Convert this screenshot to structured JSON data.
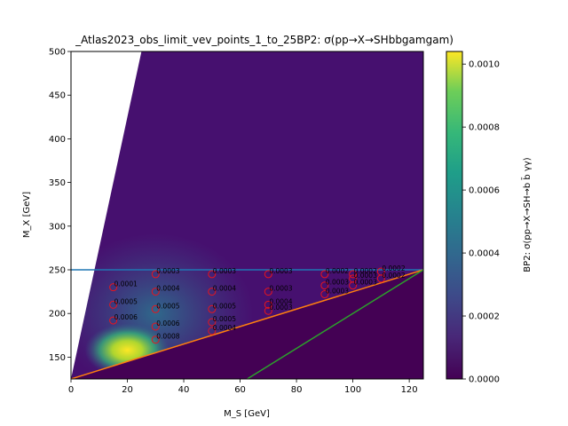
{
  "chart_data": {
    "type": "heatmap",
    "title": "_Atlas2023_obs_limit_vev_points_1_to_25BP2: σ(pp→X→SHbbgamgam)",
    "xlabel": "M_S [GeV]",
    "ylabel": "M_X [GeV]",
    "xlim": [
      0,
      125
    ],
    "ylim": [
      125,
      500
    ],
    "xticks": [
      "0",
      "20",
      "40",
      "60",
      "80",
      "100",
      "120"
    ],
    "yticks": [
      "150",
      "200",
      "250",
      "300",
      "350",
      "400",
      "450",
      "500"
    ],
    "colorbar": {
      "label": "BP2: σ(pp→X→SH→b b̄ γγ)",
      "min": 0.0,
      "max": 0.00104,
      "ticks": [
        "0.0000",
        "0.0002",
        "0.0004",
        "0.0006",
        "0.0008",
        "0.0010"
      ],
      "colormap": "viridis"
    },
    "lines": [
      {
        "color": "#1f77b4",
        "points": [
          [
            0,
            250
          ],
          [
            125,
            250
          ]
        ]
      },
      {
        "color": "#ff7f0e",
        "points": [
          [
            0,
            125
          ],
          [
            125,
            250
          ]
        ]
      },
      {
        "color": "#2ca02c",
        "points": [
          [
            62.5,
            125
          ],
          [
            125,
            250
          ]
        ]
      }
    ],
    "points": [
      {
        "x": 15,
        "y": 230,
        "label": "0.0001"
      },
      {
        "x": 15,
        "y": 210,
        "label": "0.0005"
      },
      {
        "x": 15,
        "y": 192,
        "label": "0.0006"
      },
      {
        "x": 30,
        "y": 245,
        "label": "0.0003"
      },
      {
        "x": 30,
        "y": 225,
        "label": "0.0004"
      },
      {
        "x": 30,
        "y": 205,
        "label": "0.0005"
      },
      {
        "x": 30,
        "y": 185,
        "label": "0.0006"
      },
      {
        "x": 30,
        "y": 170,
        "label": "0.0008"
      },
      {
        "x": 50,
        "y": 245,
        "label": "0.0003"
      },
      {
        "x": 50,
        "y": 225,
        "label": "0.0004"
      },
      {
        "x": 50,
        "y": 205,
        "label": "0.0005"
      },
      {
        "x": 50,
        "y": 190,
        "label": "0.0005"
      },
      {
        "x": 50,
        "y": 180,
        "label": "0.0004"
      },
      {
        "x": 70,
        "y": 245,
        "label": "0.0003"
      },
      {
        "x": 70,
        "y": 225,
        "label": "0.0003"
      },
      {
        "x": 70,
        "y": 210,
        "label": "0.0004"
      },
      {
        "x": 70,
        "y": 203,
        "label": "0.0003"
      },
      {
        "x": 90,
        "y": 245,
        "label": "0.0002"
      },
      {
        "x": 90,
        "y": 232,
        "label": "0.0003"
      },
      {
        "x": 90,
        "y": 222,
        "label": "0.0003"
      },
      {
        "x": 100,
        "y": 245,
        "label": "0.0002"
      },
      {
        "x": 100,
        "y": 240,
        "label": "0.0003"
      },
      {
        "x": 100,
        "y": 232,
        "label": "0.0003"
      },
      {
        "x": 110,
        "y": 248,
        "label": "0.0002"
      },
      {
        "x": 110,
        "y": 240,
        "label": "0.0002"
      }
    ]
  }
}
